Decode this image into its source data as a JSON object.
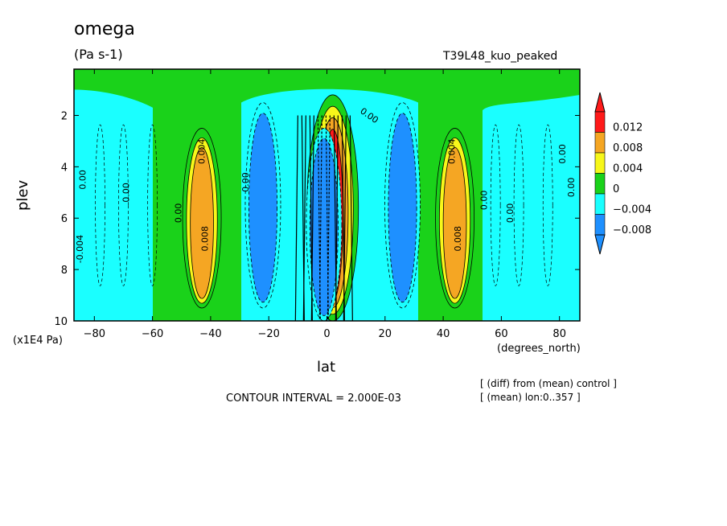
{
  "chart_data": {
    "type": "heatmap",
    "title": "omega",
    "units": "(Pa s-1)",
    "run_label": "T39L48_kuo_peaked",
    "xlabel": "lat",
    "ylabel": "plev",
    "y_multiplier": "(x1E4 Pa)",
    "x_units": "(degrees_north)",
    "xlim": [
      -87,
      87
    ],
    "ylim": [
      10,
      0.2
    ],
    "x_ticks": [
      -80,
      -60,
      -40,
      -20,
      0,
      20,
      40,
      60,
      80
    ],
    "y_ticks": [
      2,
      4,
      6,
      8,
      10
    ],
    "contour_interval": "CONTOUR INTERVAL = 2.000E-03",
    "notes": [
      "[ (diff) from (mean) control ]",
      "[ (mean) lon:0..357 ]"
    ],
    "colorbar": {
      "labels": [
        "0.012",
        "0.008",
        "0.004",
        "0",
        "-0.004",
        "-0.008"
      ],
      "colors": [
        "#ff1a1a",
        "#f5a623",
        "#f7f71a",
        "#1ad21a",
        "#1affff",
        "#1e90ff"
      ]
    },
    "features": [
      {
        "kind": "positive",
        "lat": 2,
        "plev_top": 1.2,
        "plev_bottom": 10,
        "peak": 0.014
      },
      {
        "kind": "positive",
        "lat": -43,
        "plev_top": 2.5,
        "plev_bottom": 9.5,
        "peak": 0.009
      },
      {
        "kind": "positive",
        "lat": 44,
        "plev_top": 2.5,
        "plev_bottom": 9.5,
        "peak": 0.009
      },
      {
        "kind": "negative",
        "lat": -22,
        "plev_top": 1.5,
        "plev_bottom": 9.5,
        "peak": -0.01
      },
      {
        "kind": "negative",
        "lat": 26,
        "plev_top": 1.5,
        "plev_bottom": 9.5,
        "peak": -0.01
      },
      {
        "kind": "negative",
        "lat": -1,
        "plev_top": 2.5,
        "plev_bottom": 10,
        "peak": -0.01
      }
    ],
    "contour_labels": [
      "0.004",
      "0.004",
      "0.00",
      "0.00",
      "0.008",
      "0.008",
      "0.00",
      "-0.004",
      "0.00",
      "0.00",
      "0.00",
      "0.00",
      "0.00",
      "0.00"
    ]
  }
}
